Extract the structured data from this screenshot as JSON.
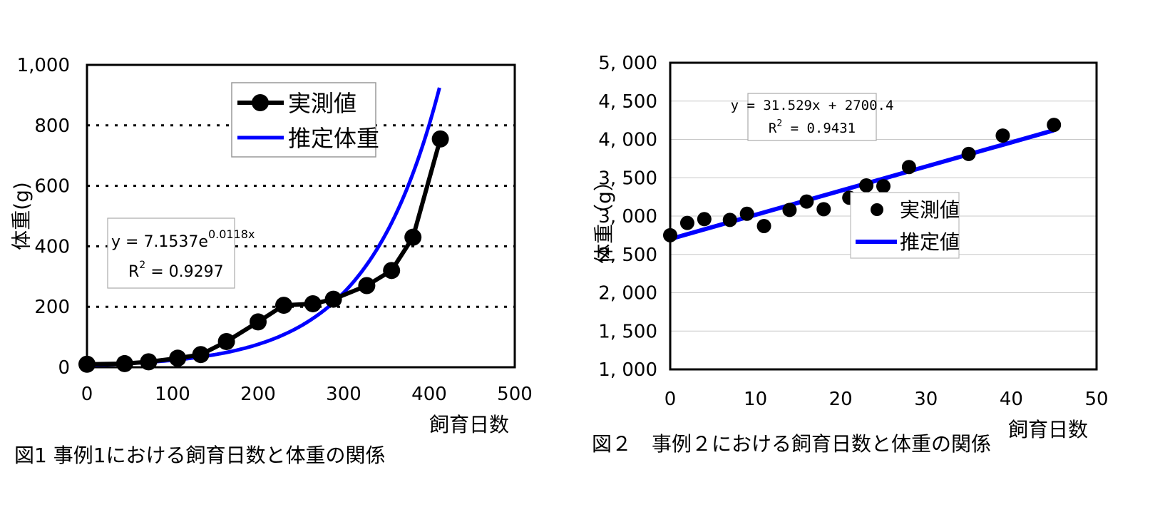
{
  "chart_data": [
    {
      "type": "line",
      "title": "",
      "caption": "図1  事例1における飼育日数と体重の関係",
      "xlabel": "飼育日数",
      "ylabel": "体重(g)",
      "xlim": [
        0,
        500
      ],
      "ylim": [
        0,
        1000
      ],
      "x_ticks": [
        "0",
        "100",
        "200",
        "300",
        "400",
        "500"
      ],
      "y_ticks": [
        "0",
        "200",
        "400",
        "600",
        "800",
        "1,000"
      ],
      "grid": "dotted horizontal",
      "legend_position": "top-center",
      "series": [
        {
          "name": "実測値",
          "style": "line-markers",
          "color": "#000000",
          "x": [
            0,
            44,
            72,
            106,
            133,
            163,
            200,
            230,
            264,
            288,
            327,
            356,
            381,
            413
          ],
          "y": [
            10,
            12,
            18,
            30,
            42,
            85,
            150,
            205,
            210,
            225,
            270,
            320,
            430,
            755
          ]
        },
        {
          "name": "推定体重",
          "style": "curve",
          "color": "#0000ff",
          "equation": "y = 7.1537e^(0.0118x)",
          "x_range": [
            0,
            413
          ]
        }
      ],
      "annotation": {
        "line1_prefix": "y = 7.1537e",
        "line1_exp": "0.0118x",
        "line2_prefix": "R",
        "line2_exp": "2",
        "line2_suffix": " = 0.9297"
      }
    },
    {
      "type": "scatter",
      "title": "",
      "caption": "図２　事例２における飼育日数と体重の関係",
      "xlabel": "飼育日数",
      "ylabel": "体重（g）",
      "xlim": [
        0,
        50
      ],
      "ylim": [
        1000,
        5000
      ],
      "x_ticks": [
        "0",
        "10",
        "20",
        "30",
        "40",
        "50"
      ],
      "y_ticks": [
        "1, 000",
        "1, 500",
        "2, 000",
        "2, 500",
        "3, 000",
        "3, 500",
        "4, 000",
        "4, 500",
        "5, 000"
      ],
      "grid": "solid horizontal",
      "legend_position": "center-right",
      "series": [
        {
          "name": "実測値",
          "style": "markers",
          "color": "#000000",
          "x": [
            0,
            2,
            4,
            7,
            9,
            11,
            14,
            16,
            18,
            21,
            23,
            25,
            28,
            35,
            39,
            45
          ],
          "y": [
            2750,
            2910,
            2960,
            2950,
            3030,
            2870,
            3080,
            3190,
            3090,
            3240,
            3400,
            3390,
            3640,
            3810,
            4050,
            4190
          ]
        },
        {
          "name": "推定値",
          "style": "line",
          "color": "#0000ff",
          "equation": "y = 31.529x + 2700.4",
          "x_range": [
            0,
            45
          ]
        }
      ],
      "annotation": {
        "line1": "y = 31.529x + 2700.4",
        "line2_prefix": "R",
        "line2_exp": "2",
        "line2_suffix": " = 0.9431"
      }
    }
  ]
}
